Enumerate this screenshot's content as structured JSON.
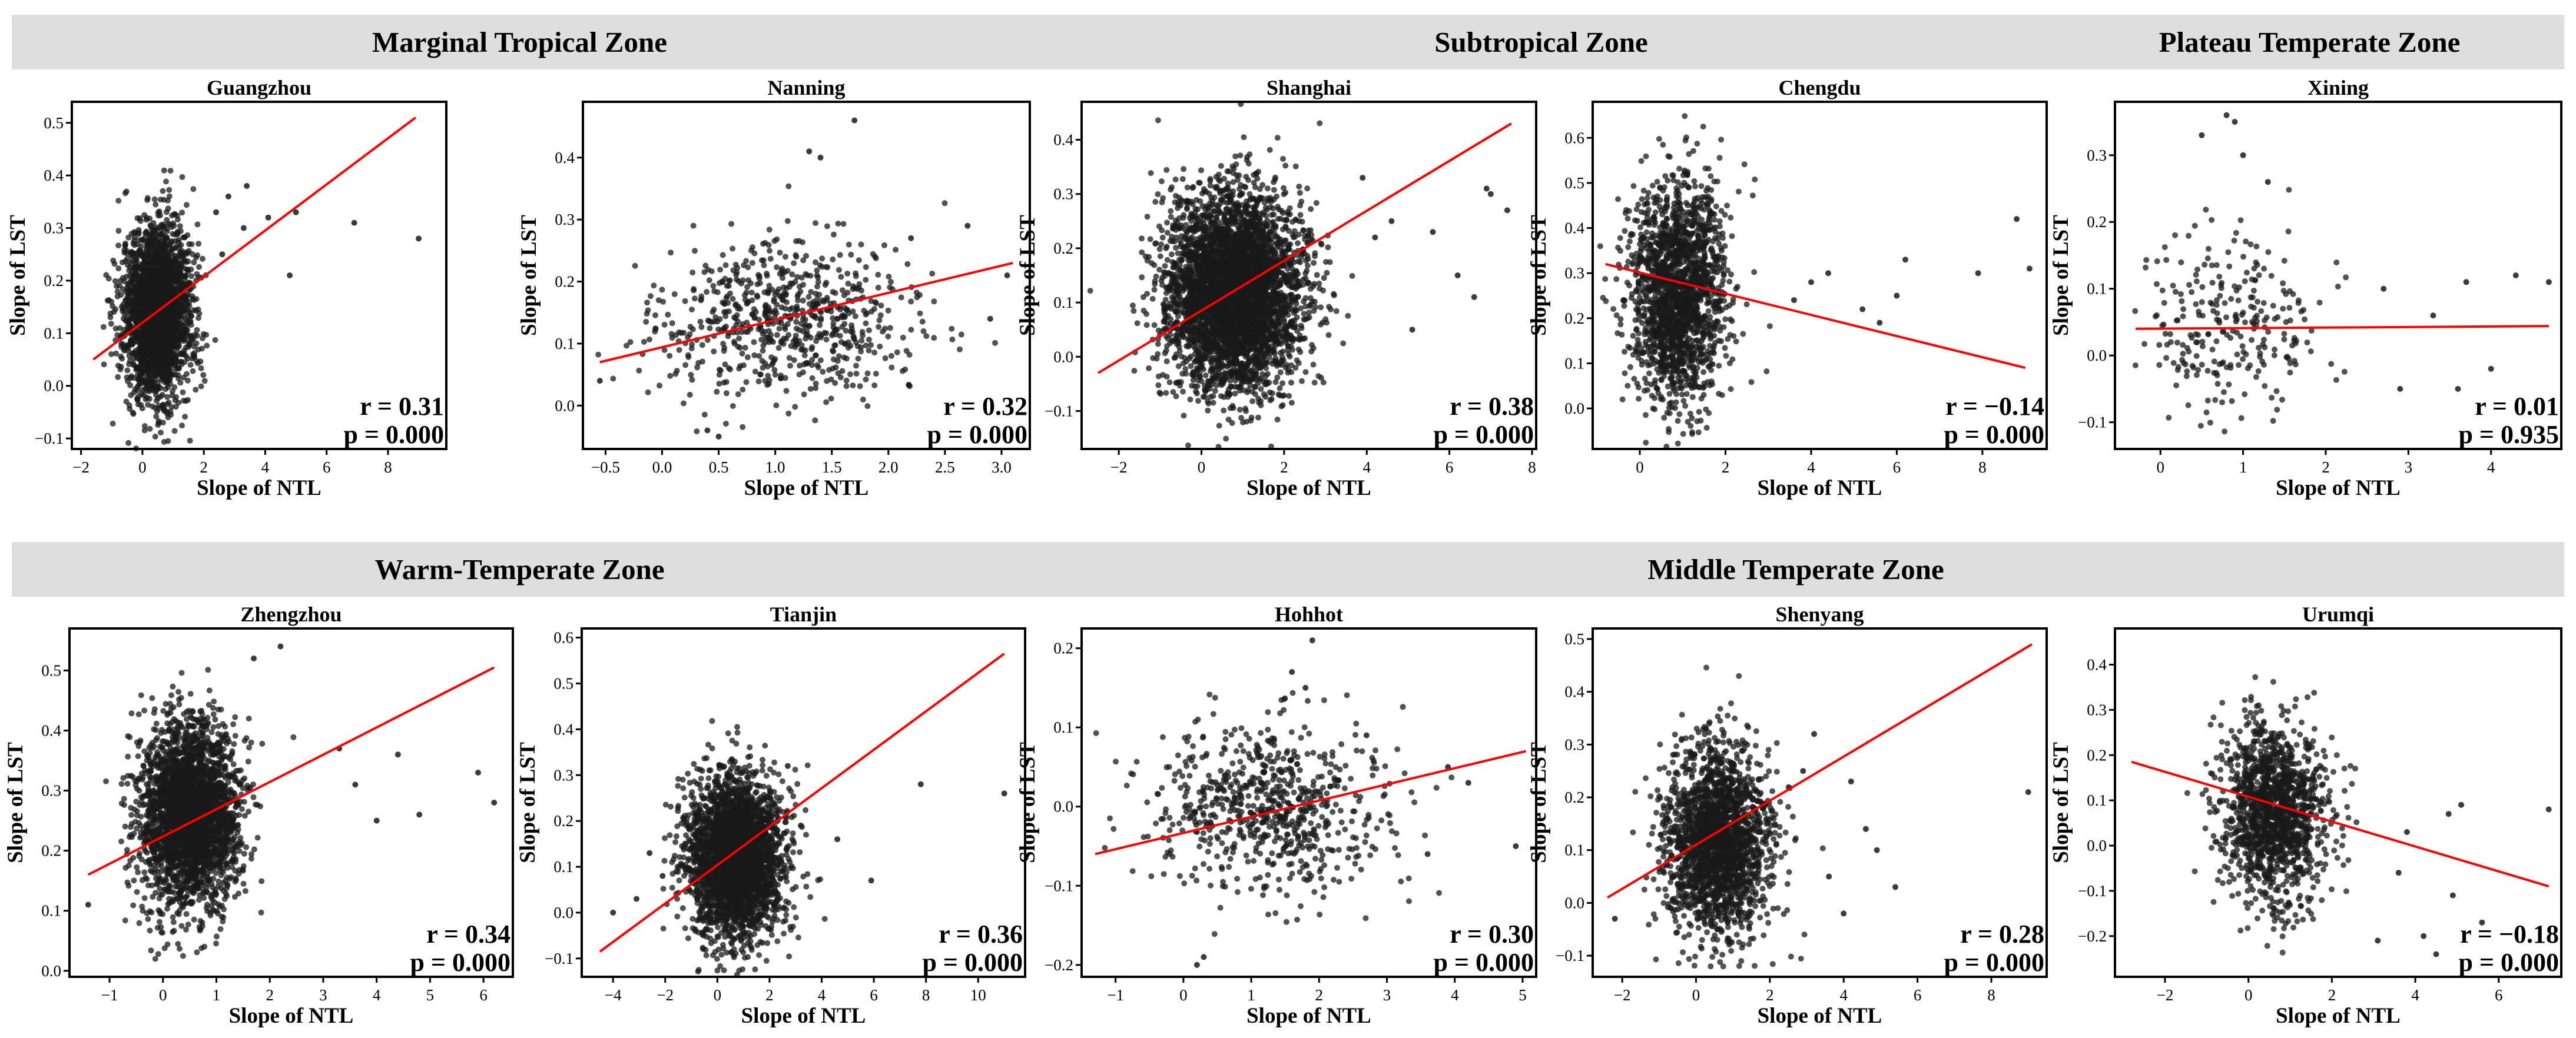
{
  "zones": [
    {
      "title": "Marginal Tropical Zone"
    },
    {
      "title": "Subtropical Zone"
    },
    {
      "title": "Plateau Temperate Zone"
    },
    {
      "title": "Warm-Temperate Zone"
    },
    {
      "title": "Middle Temperate Zone"
    }
  ],
  "colors": {
    "points": "#1a1a1a",
    "fit_line": "#ff0000",
    "band": "#dedede"
  },
  "chart_data": [
    {
      "type": "scatter",
      "title": "Guangzhou",
      "xlabel": "Slope of NTL",
      "ylabel": "Slope of LST",
      "xlim": [
        -2.3,
        9.9
      ],
      "ylim": [
        -0.12,
        0.54
      ],
      "xticks": [
        -2,
        0,
        2,
        4,
        6,
        8
      ],
      "yticks": [
        -0.1,
        0.0,
        0.1,
        0.2,
        0.3,
        0.4,
        0.5
      ],
      "r": "r = 0.31",
      "p": "p = 0.000",
      "fit_line": {
        "x": [
          -1.6,
          8.9
        ],
        "y": [
          0.05,
          0.51
        ]
      },
      "cluster": {
        "n": 2600,
        "center": [
          0.5,
          0.14
        ],
        "spread": [
          0.55,
          0.08
        ]
      },
      "outliers": [
        [
          5.0,
          0.33
        ],
        [
          6.9,
          0.31
        ],
        [
          9.0,
          0.28
        ],
        [
          2.8,
          0.36
        ],
        [
          3.4,
          0.38
        ],
        [
          4.8,
          0.21
        ],
        [
          3.3,
          0.3
        ],
        [
          2.6,
          0.25
        ],
        [
          2.4,
          0.33
        ],
        [
          4.1,
          0.32
        ]
      ]
    },
    {
      "type": "scatter",
      "title": "Nanning",
      "xlabel": "Slope of NTL",
      "ylabel": "Slope of LST",
      "xlim": [
        -0.7,
        3.25
      ],
      "ylim": [
        -0.07,
        0.49
      ],
      "xticks": [
        -0.5,
        0.0,
        0.5,
        1.0,
        1.5,
        2.0,
        2.5,
        3.0
      ],
      "yticks": [
        0.0,
        0.1,
        0.2,
        0.3,
        0.4
      ],
      "r": "r = 0.32",
      "p": "p = 0.000",
      "fit_line": {
        "x": [
          -0.55,
          3.1
        ],
        "y": [
          0.07,
          0.23
        ]
      },
      "cluster": {
        "n": 700,
        "center": [
          1.1,
          0.14
        ],
        "spread": [
          0.6,
          0.06
        ]
      },
      "outliers": [
        [
          1.7,
          0.46
        ],
        [
          1.3,
          0.41
        ],
        [
          1.4,
          0.4
        ],
        [
          2.2,
          0.27
        ],
        [
          2.7,
          0.29
        ],
        [
          3.05,
          0.21
        ],
        [
          -0.55,
          0.04
        ],
        [
          0.4,
          -0.04
        ],
        [
          0.5,
          -0.05
        ],
        [
          2.9,
          0.14
        ]
      ]
    },
    {
      "type": "scatter",
      "title": "Shanghai",
      "xlabel": "Slope of NTL",
      "ylabel": "Slope of LST",
      "xlim": [
        -2.9,
        8.1
      ],
      "ylim": [
        -0.17,
        0.47
      ],
      "xticks": [
        -2,
        0,
        2,
        4,
        6,
        8
      ],
      "yticks": [
        -0.1,
        0.0,
        0.1,
        0.2,
        0.3,
        0.4
      ],
      "r": "r = 0.38",
      "p": "p = 0.000",
      "fit_line": {
        "x": [
          -2.5,
          7.5
        ],
        "y": [
          -0.03,
          0.43
        ]
      },
      "cluster": {
        "n": 4200,
        "center": [
          0.8,
          0.12
        ],
        "spread": [
          0.8,
          0.09
        ]
      },
      "outliers": [
        [
          7.0,
          0.3
        ],
        [
          7.4,
          0.27
        ],
        [
          6.9,
          0.31
        ],
        [
          6.2,
          0.15
        ],
        [
          6.6,
          0.11
        ],
        [
          5.1,
          0.05
        ],
        [
          5.6,
          0.23
        ],
        [
          4.6,
          0.25
        ],
        [
          3.9,
          0.33
        ],
        [
          4.2,
          0.22
        ]
      ]
    },
    {
      "type": "scatter",
      "title": "Chengdu",
      "xlabel": "Slope of NTL",
      "ylabel": "Slope of LST",
      "xlim": [
        -1.1,
        9.5
      ],
      "ylim": [
        -0.09,
        0.68
      ],
      "xticks": [
        0,
        2,
        4,
        6,
        8
      ],
      "yticks": [
        0.0,
        0.1,
        0.2,
        0.3,
        0.4,
        0.5,
        0.6
      ],
      "r": "r = −0.14",
      "p": "p = 0.000",
      "fit_line": {
        "x": [
          -0.8,
          9.0
        ],
        "y": [
          0.32,
          0.09
        ]
      },
      "cluster": {
        "n": 1800,
        "center": [
          0.9,
          0.26
        ],
        "spread": [
          0.55,
          0.12
        ]
      },
      "outliers": [
        [
          8.8,
          0.42
        ],
        [
          6.2,
          0.33
        ],
        [
          7.9,
          0.3
        ],
        [
          9.1,
          0.31
        ],
        [
          5.2,
          0.22
        ],
        [
          4.4,
          0.3
        ],
        [
          6.0,
          0.25
        ],
        [
          4.0,
          0.28
        ],
        [
          3.6,
          0.24
        ],
        [
          5.6,
          0.19
        ]
      ]
    },
    {
      "type": "scatter",
      "title": "Xining",
      "xlabel": "Slope of NTL",
      "ylabel": "Slope of LST",
      "xlim": [
        -0.55,
        4.85
      ],
      "ylim": [
        -0.14,
        0.38
      ],
      "xticks": [
        0,
        1,
        2,
        3,
        4
      ],
      "yticks": [
        -0.1,
        0.0,
        0.1,
        0.2,
        0.3
      ],
      "r": "r = 0.01",
      "p": "p = 0.935",
      "fit_line": {
        "x": [
          -0.3,
          4.7
        ],
        "y": [
          0.04,
          0.044
        ]
      },
      "cluster": {
        "n": 260,
        "center": [
          0.85,
          0.04
        ],
        "spread": [
          0.55,
          0.07
        ]
      },
      "outliers": [
        [
          0.8,
          0.36
        ],
        [
          0.9,
          0.35
        ],
        [
          0.5,
          0.33
        ],
        [
          4.3,
          0.12
        ],
        [
          3.7,
          0.11
        ],
        [
          4.7,
          0.11
        ],
        [
          2.7,
          0.1
        ],
        [
          3.3,
          0.06
        ],
        [
          3.6,
          -0.05
        ],
        [
          4.0,
          -0.02
        ],
        [
          2.9,
          -0.05
        ],
        [
          1.3,
          0.26
        ],
        [
          1.0,
          0.3
        ]
      ]
    },
    {
      "type": "scatter",
      "title": "Zhengzhou",
      "xlabel": "Slope of NTL",
      "ylabel": "Slope of LST",
      "xlim": [
        -1.75,
        6.55
      ],
      "ylim": [
        -0.01,
        0.57
      ],
      "xticks": [
        -1,
        0,
        1,
        2,
        3,
        4,
        5,
        6
      ],
      "yticks": [
        0.0,
        0.1,
        0.2,
        0.3,
        0.4,
        0.5
      ],
      "r": "r = 0.34",
      "p": "p = 0.000",
      "fit_line": {
        "x": [
          -1.4,
          6.2
        ],
        "y": [
          0.16,
          0.505
        ]
      },
      "cluster": {
        "n": 3000,
        "center": [
          0.5,
          0.26
        ],
        "spread": [
          0.45,
          0.075
        ]
      },
      "outliers": [
        [
          6.2,
          0.28
        ],
        [
          5.9,
          0.33
        ],
        [
          4.4,
          0.36
        ],
        [
          3.6,
          0.31
        ],
        [
          2.2,
          0.54
        ],
        [
          1.7,
          0.52
        ],
        [
          4.0,
          0.25
        ],
        [
          4.8,
          0.26
        ],
        [
          3.3,
          0.37
        ],
        [
          -1.4,
          0.11
        ]
      ]
    },
    {
      "type": "scatter",
      "title": "Tianjin",
      "xlabel": "Slope of NTL",
      "ylabel": "Slope of LST",
      "xlim": [
        -5.2,
        11.8
      ],
      "ylim": [
        -0.14,
        0.62
      ],
      "xticks": [
        -4,
        -2,
        0,
        2,
        4,
        6,
        8,
        10
      ],
      "yticks": [
        -0.1,
        0.0,
        0.1,
        0.2,
        0.3,
        0.4,
        0.5,
        0.6
      ],
      "r": "r = 0.36",
      "p": "p = 0.000",
      "fit_line": {
        "x": [
          -4.5,
          11.0
        ],
        "y": [
          -0.085,
          0.565
        ]
      },
      "cluster": {
        "n": 3000,
        "center": [
          0.7,
          0.12
        ],
        "spread": [
          0.9,
          0.085
        ]
      },
      "outliers": [
        [
          11.0,
          0.26
        ],
        [
          7.8,
          0.28
        ],
        [
          4.6,
          0.16
        ],
        [
          3.2,
          0.19
        ],
        [
          -4.0,
          0.0
        ],
        [
          -2.6,
          0.13
        ],
        [
          -2.1,
          0.08
        ],
        [
          -3.1,
          0.03
        ],
        [
          5.9,
          0.07
        ],
        [
          2.7,
          0.32
        ]
      ]
    },
    {
      "type": "scatter",
      "title": "Hohhot",
      "xlabel": "Slope of NTL",
      "ylabel": "Slope of LST",
      "xlim": [
        -1.5,
        5.2
      ],
      "ylim": [
        -0.215,
        0.225
      ],
      "xticks": [
        -1,
        0,
        1,
        2,
        3,
        4,
        5
      ],
      "yticks": [
        -0.2,
        -0.1,
        0.0,
        0.1,
        0.2
      ],
      "r": "r = 0.30",
      "p": "p = 0.000",
      "fit_line": {
        "x": [
          -1.3,
          5.05
        ],
        "y": [
          -0.06,
          0.07
        ]
      },
      "cluster": {
        "n": 700,
        "center": [
          1.3,
          0.0
        ],
        "spread": [
          0.85,
          0.055
        ]
      },
      "outliers": [
        [
          1.9,
          0.21
        ],
        [
          1.6,
          0.17
        ],
        [
          1.8,
          0.15
        ],
        [
          0.2,
          -0.2
        ],
        [
          0.3,
          -0.19
        ],
        [
          4.9,
          -0.05
        ],
        [
          3.9,
          0.05
        ],
        [
          4.2,
          0.03
        ],
        [
          3.6,
          -0.06
        ],
        [
          2.7,
          0.09
        ]
      ]
    },
    {
      "type": "scatter",
      "title": "Shenyang",
      "xlabel": "Slope of NTL",
      "ylabel": "Slope of LST",
      "xlim": [
        -2.8,
        9.5
      ],
      "ylim": [
        -0.14,
        0.52
      ],
      "xticks": [
        -2,
        0,
        2,
        4,
        6,
        8
      ],
      "yticks": [
        -0.1,
        0.0,
        0.1,
        0.2,
        0.3,
        0.4,
        0.5
      ],
      "r": "r = 0.28",
      "p": "p = 0.000",
      "fit_line": {
        "x": [
          -2.4,
          9.1
        ],
        "y": [
          0.01,
          0.49
        ]
      },
      "cluster": {
        "n": 2000,
        "center": [
          0.6,
          0.12
        ],
        "spread": [
          0.7,
          0.09
        ]
      },
      "outliers": [
        [
          9.0,
          0.21
        ],
        [
          4.9,
          0.1
        ],
        [
          4.2,
          0.23
        ],
        [
          3.6,
          0.05
        ],
        [
          5.4,
          0.03
        ],
        [
          4.6,
          0.14
        ],
        [
          3.2,
          0.32
        ],
        [
          2.9,
          0.25
        ],
        [
          -2.2,
          -0.03
        ],
        [
          4.0,
          -0.02
        ]
      ]
    },
    {
      "type": "scatter",
      "title": "Urumqi",
      "xlabel": "Slope of NTL",
      "ylabel": "Slope of LST",
      "xlim": [
        -3.2,
        7.5
      ],
      "ylim": [
        -0.29,
        0.48
      ],
      "xticks": [
        -2,
        0,
        2,
        4,
        6
      ],
      "yticks": [
        -0.2,
        -0.1,
        0.0,
        0.1,
        0.2,
        0.3,
        0.4
      ],
      "r": "r = −0.18",
      "p": "p = 0.000",
      "fit_line": {
        "x": [
          -2.8,
          7.2
        ],
        "y": [
          0.185,
          -0.09
        ]
      },
      "cluster": {
        "n": 1400,
        "center": [
          0.6,
          0.07
        ],
        "spread": [
          0.6,
          0.1
        ]
      },
      "outliers": [
        [
          7.2,
          0.08
        ],
        [
          5.1,
          0.09
        ],
        [
          4.8,
          0.07
        ],
        [
          3.8,
          0.03
        ],
        [
          4.5,
          -0.24
        ],
        [
          4.2,
          -0.2
        ],
        [
          3.1,
          -0.21
        ],
        [
          5.6,
          -0.17
        ],
        [
          3.6,
          -0.06
        ],
        [
          4.9,
          -0.11
        ]
      ]
    }
  ]
}
